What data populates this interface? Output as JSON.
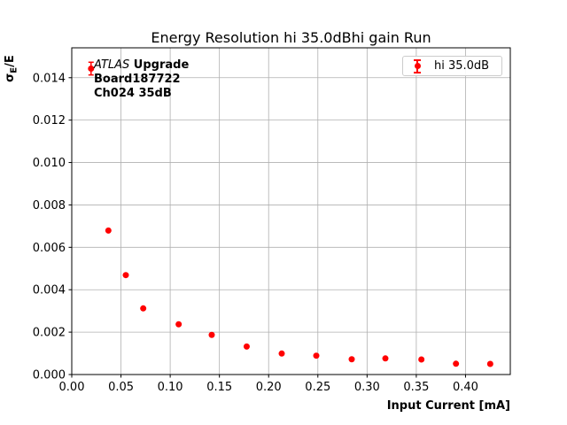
{
  "figure_title": "Energy Resolution hi 35.0dBhi gain Run",
  "chart_data": {
    "type": "scatter",
    "title": "Energy Resolution hi 35.0dBhi gain Run",
    "xlabel": "Input Current [mA]",
    "ylabel": {
      "sigma": "σ",
      "subscript": "E",
      "rest": "/E"
    },
    "xlim": [
      0.0,
      0.4455
    ],
    "ylim": [
      0.0,
      0.01541
    ],
    "xticks": [
      0.0,
      0.05,
      0.1,
      0.15,
      0.2,
      0.25,
      0.3,
      0.35,
      0.4
    ],
    "xtick_labels": [
      "0.00",
      "0.05",
      "0.10",
      "0.15",
      "0.20",
      "0.25",
      "0.30",
      "0.35",
      "0.40"
    ],
    "yticks": [
      0.0,
      0.002,
      0.004,
      0.006,
      0.008,
      0.01,
      0.012,
      0.014
    ],
    "ytick_labels": [
      "0.000",
      "0.002",
      "0.004",
      "0.006",
      "0.008",
      "0.010",
      "0.012",
      "0.014"
    ],
    "grid": true,
    "legend": {
      "position": "upper right",
      "entries": [
        {
          "label": "hi 35.0dB",
          "marker": "errorbar-dot",
          "color": "#ff0000"
        }
      ]
    },
    "annotation": {
      "line1_italic": "ATLAS",
      "line1_bold": " Upgrade",
      "line2": "Board187722",
      "line3": "Ch024 35dB"
    },
    "series": [
      {
        "name": "hi 35.0dB",
        "color": "#ff0000",
        "marker": "circle",
        "marker_size": 3.5,
        "x": [
          0.0196,
          0.0372,
          0.0549,
          0.0726,
          0.1086,
          0.1422,
          0.1777,
          0.2133,
          0.2484,
          0.2844,
          0.3186,
          0.3552,
          0.3903,
          0.4251
        ],
        "y": [
          0.01443,
          0.00679,
          0.00469,
          0.00312,
          0.00237,
          0.00187,
          0.00132,
          0.00099,
          0.00089,
          0.00072,
          0.00076,
          0.00071,
          0.00051,
          0.0005
        ],
        "yerr": [
          0.0003,
          0,
          0,
          0,
          0,
          0,
          0,
          0,
          0,
          0,
          0,
          0,
          0,
          0
        ]
      }
    ],
    "colors": {
      "series": "#ff0000",
      "grid": "#b0b0b0",
      "spine": "#000000",
      "text": "#000000",
      "legend_border": "#cccccc",
      "legend_bg": "#ffffff"
    }
  }
}
